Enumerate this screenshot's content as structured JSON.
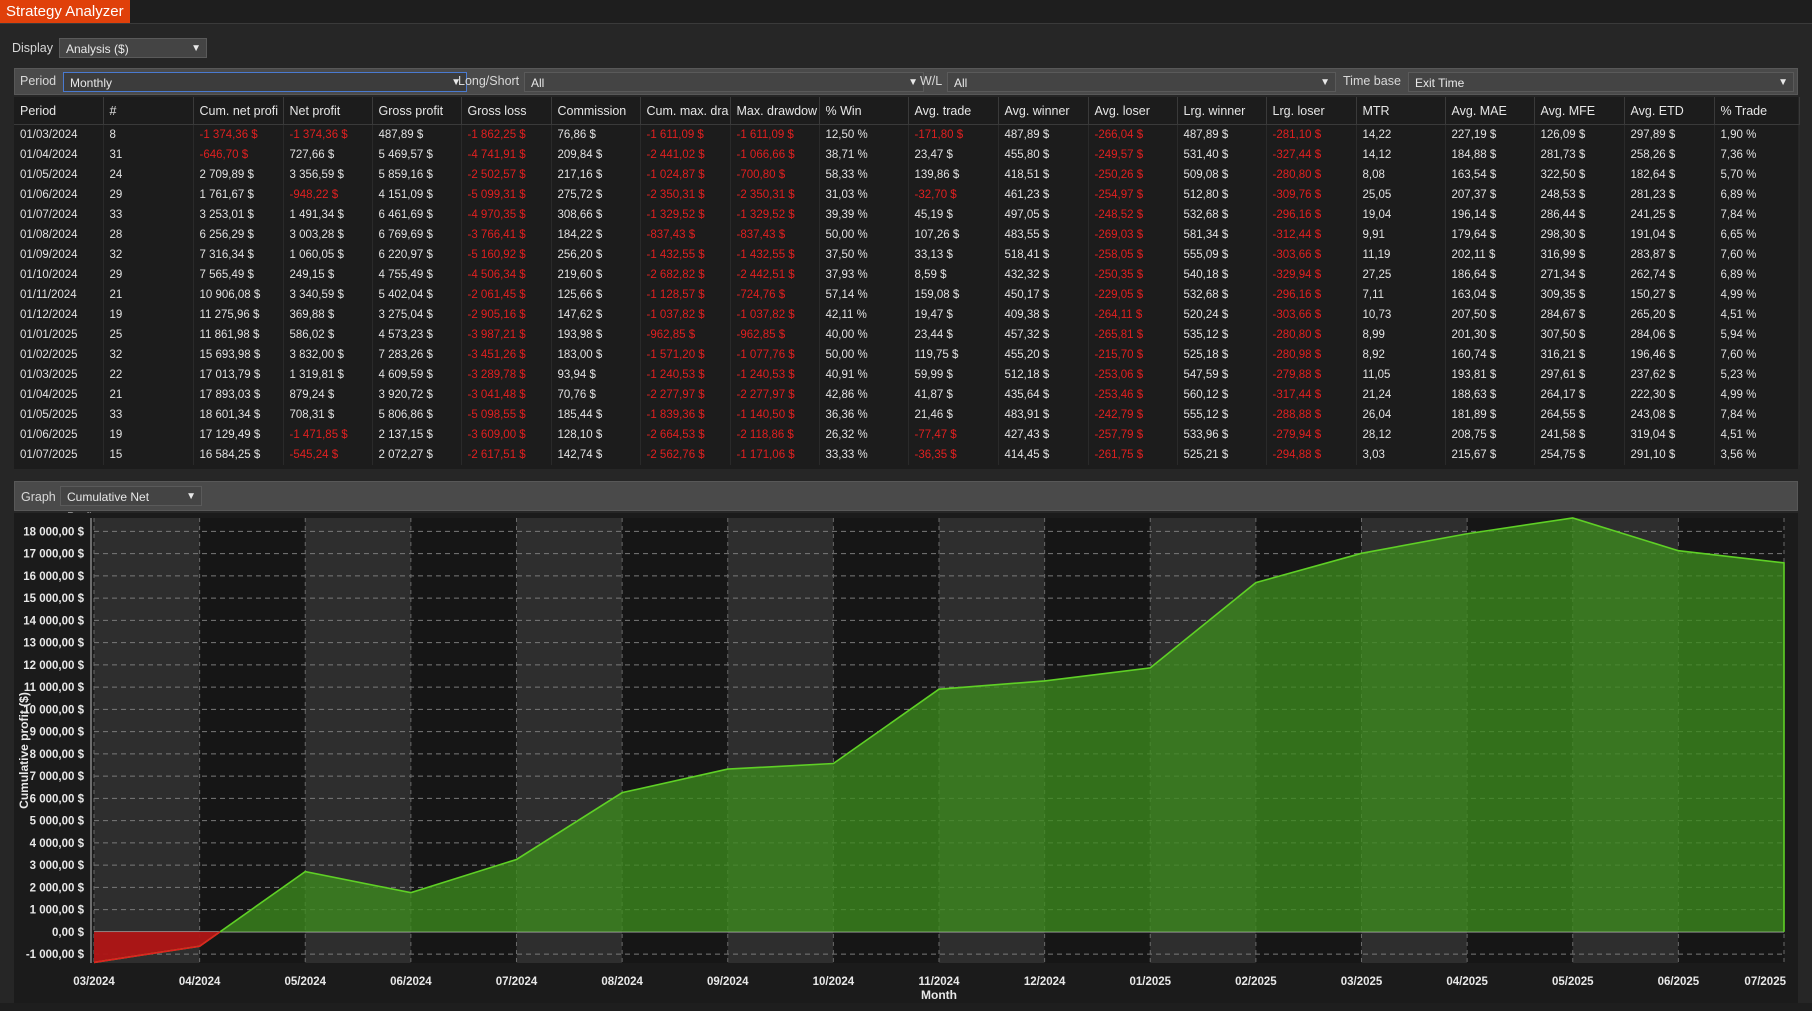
{
  "app": {
    "title": "Strategy Analyzer"
  },
  "display": {
    "label": "Display",
    "value": "Analysis ($)"
  },
  "filters": {
    "period_label": "Period",
    "period_value": "Monthly",
    "longshort_label": "Long/Short",
    "longshort_value": "All",
    "wl_label": "W/L",
    "wl_value": "All",
    "timebase_label": "Time base",
    "timebase_value": "Exit Time"
  },
  "table": {
    "headers": [
      "Period",
      "#",
      "Cum. net profi",
      "Net profit",
      "Gross profit",
      "Gross loss",
      "Commission",
      "Cum. max. dra",
      "Max. drawdow",
      "% Win",
      "Avg. trade",
      "Avg. winner",
      "Avg. loser",
      "Lrg. winner",
      "Lrg. loser",
      "MTR",
      "Avg. MAE",
      "Avg. MFE",
      "Avg. ETD",
      "% Trade"
    ],
    "rows": [
      [
        "01/03/2024",
        "8",
        "-1 374,36 $",
        "-1 374,36 $",
        "487,89 $",
        "-1 862,25 $",
        "76,86 $",
        "-1 611,09 $",
        "-1 611,09 $",
        "12,50 %",
        "-171,80 $",
        "487,89 $",
        "-266,04 $",
        "487,89 $",
        "-281,10 $",
        "14,22",
        "227,19 $",
        "126,09 $",
        "297,89 $",
        "1,90 %"
      ],
      [
        "01/04/2024",
        "31",
        "-646,70 $",
        "727,66 $",
        "5 469,57 $",
        "-4 741,91 $",
        "209,84 $",
        "-2 441,02 $",
        "-1 066,66 $",
        "38,71 %",
        "23,47 $",
        "455,80 $",
        "-249,57 $",
        "531,40 $",
        "-327,44 $",
        "14,12",
        "184,88 $",
        "281,73 $",
        "258,26 $",
        "7,36 %"
      ],
      [
        "01/05/2024",
        "24",
        "2 709,89 $",
        "3 356,59 $",
        "5 859,16 $",
        "-2 502,57 $",
        "217,16 $",
        "-1 024,87 $",
        "-700,80 $",
        "58,33 %",
        "139,86 $",
        "418,51 $",
        "-250,26 $",
        "509,08 $",
        "-280,80 $",
        "8,08",
        "163,54 $",
        "322,50 $",
        "182,64 $",
        "5,70 %"
      ],
      [
        "01/06/2024",
        "29",
        "1 761,67 $",
        "-948,22 $",
        "4 151,09 $",
        "-5 099,31 $",
        "275,72 $",
        "-2 350,31 $",
        "-2 350,31 $",
        "31,03 %",
        "-32,70 $",
        "461,23 $",
        "-254,97 $",
        "512,80 $",
        "-309,76 $",
        "25,05",
        "207,37 $",
        "248,53 $",
        "281,23 $",
        "6,89 %"
      ],
      [
        "01/07/2024",
        "33",
        "3 253,01 $",
        "1 491,34 $",
        "6 461,69 $",
        "-4 970,35 $",
        "308,66 $",
        "-1 329,52 $",
        "-1 329,52 $",
        "39,39 %",
        "45,19 $",
        "497,05 $",
        "-248,52 $",
        "532,68 $",
        "-296,16 $",
        "19,04",
        "196,14 $",
        "286,44 $",
        "241,25 $",
        "7,84 %"
      ],
      [
        "01/08/2024",
        "28",
        "6 256,29 $",
        "3 003,28 $",
        "6 769,69 $",
        "-3 766,41 $",
        "184,22 $",
        "-837,43 $",
        "-837,43 $",
        "50,00 %",
        "107,26 $",
        "483,55 $",
        "-269,03 $",
        "581,34 $",
        "-312,44 $",
        "9,91",
        "179,64 $",
        "298,30 $",
        "191,04 $",
        "6,65 %"
      ],
      [
        "01/09/2024",
        "32",
        "7 316,34 $",
        "1 060,05 $",
        "6 220,97 $",
        "-5 160,92 $",
        "256,20 $",
        "-1 432,55 $",
        "-1 432,55 $",
        "37,50 %",
        "33,13 $",
        "518,41 $",
        "-258,05 $",
        "555,09 $",
        "-303,66 $",
        "11,19",
        "202,11 $",
        "316,99 $",
        "283,87 $",
        "7,60 %"
      ],
      [
        "01/10/2024",
        "29",
        "7 565,49 $",
        "249,15 $",
        "4 755,49 $",
        "-4 506,34 $",
        "219,60 $",
        "-2 682,82 $",
        "-2 442,51 $",
        "37,93 %",
        "8,59 $",
        "432,32 $",
        "-250,35 $",
        "540,18 $",
        "-329,94 $",
        "27,25",
        "186,64 $",
        "271,34 $",
        "262,74 $",
        "6,89 %"
      ],
      [
        "01/11/2024",
        "21",
        "10 906,08 $",
        "3 340,59 $",
        "5 402,04 $",
        "-2 061,45 $",
        "125,66 $",
        "-1 128,57 $",
        "-724,76 $",
        "57,14 %",
        "159,08 $",
        "450,17 $",
        "-229,05 $",
        "532,68 $",
        "-296,16 $",
        "7,11",
        "163,04 $",
        "309,35 $",
        "150,27 $",
        "4,99 %"
      ],
      [
        "01/12/2024",
        "19",
        "11 275,96 $",
        "369,88 $",
        "3 275,04 $",
        "-2 905,16 $",
        "147,62 $",
        "-1 037,82 $",
        "-1 037,82 $",
        "42,11 %",
        "19,47 $",
        "409,38 $",
        "-264,11 $",
        "520,24 $",
        "-303,66 $",
        "10,73",
        "207,50 $",
        "284,67 $",
        "265,20 $",
        "4,51 %"
      ],
      [
        "01/01/2025",
        "25",
        "11 861,98 $",
        "586,02 $",
        "4 573,23 $",
        "-3 987,21 $",
        "193,98 $",
        "-962,85 $",
        "-962,85 $",
        "40,00 %",
        "23,44 $",
        "457,32 $",
        "-265,81 $",
        "535,12 $",
        "-280,80 $",
        "8,99",
        "201,30 $",
        "307,50 $",
        "284,06 $",
        "5,94 %"
      ],
      [
        "01/02/2025",
        "32",
        "15 693,98 $",
        "3 832,00 $",
        "7 283,26 $",
        "-3 451,26 $",
        "183,00 $",
        "-1 571,20 $",
        "-1 077,76 $",
        "50,00 %",
        "119,75 $",
        "455,20 $",
        "-215,70 $",
        "525,18 $",
        "-280,98 $",
        "8,92",
        "160,74 $",
        "316,21 $",
        "196,46 $",
        "7,60 %"
      ],
      [
        "01/03/2025",
        "22",
        "17 013,79 $",
        "1 319,81 $",
        "4 609,59 $",
        "-3 289,78 $",
        "93,94 $",
        "-1 240,53 $",
        "-1 240,53 $",
        "40,91 %",
        "59,99 $",
        "512,18 $",
        "-253,06 $",
        "547,59 $",
        "-279,88 $",
        "11,05",
        "193,81 $",
        "297,61 $",
        "237,62 $",
        "5,23 %"
      ],
      [
        "01/04/2025",
        "21",
        "17 893,03 $",
        "879,24 $",
        "3 920,72 $",
        "-3 041,48 $",
        "70,76 $",
        "-2 277,97 $",
        "-2 277,97 $",
        "42,86 %",
        "41,87 $",
        "435,64 $",
        "-253,46 $",
        "560,12 $",
        "-317,44 $",
        "21,24",
        "188,63 $",
        "264,17 $",
        "222,30 $",
        "4,99 %"
      ],
      [
        "01/05/2025",
        "33",
        "18 601,34 $",
        "708,31 $",
        "5 806,86 $",
        "-5 098,55 $",
        "185,44 $",
        "-1 839,36 $",
        "-1 140,50 $",
        "36,36 %",
        "21,46 $",
        "483,91 $",
        "-242,79 $",
        "555,12 $",
        "-288,88 $",
        "26,04",
        "181,89 $",
        "264,55 $",
        "243,08 $",
        "7,84 %"
      ],
      [
        "01/06/2025",
        "19",
        "17 129,49 $",
        "-1 471,85 $",
        "2 137,15 $",
        "-3 609,00 $",
        "128,10 $",
        "-2 664,53 $",
        "-2 118,86 $",
        "26,32 %",
        "-77,47 $",
        "427,43 $",
        "-257,79 $",
        "533,96 $",
        "-279,94 $",
        "28,12",
        "208,75 $",
        "241,58 $",
        "319,04 $",
        "4,51 %"
      ],
      [
        "01/07/2025",
        "15",
        "16 584,25 $",
        "-545,24 $",
        "2 072,27 $",
        "-2 617,51 $",
        "142,74 $",
        "-2 562,76 $",
        "-1 171,06 $",
        "33,33 %",
        "-36,35 $",
        "414,45 $",
        "-261,75 $",
        "525,21 $",
        "-294,88 $",
        "3,03",
        "215,67 $",
        "254,75 $",
        "291,10 $",
        "3,56 %"
      ]
    ]
  },
  "graph": {
    "label": "Graph",
    "value": "Cumulative Net Profit"
  },
  "chart_data": {
    "type": "area",
    "xlabel": "Month",
    "ylabel": "Cumulative profit ($)",
    "categories": [
      "03/2024",
      "04/2024",
      "05/2024",
      "06/2024",
      "07/2024",
      "08/2024",
      "09/2024",
      "10/2024",
      "11/2024",
      "12/2024",
      "01/2025",
      "02/2025",
      "03/2025",
      "04/2025",
      "05/2025",
      "06/2025",
      "07/2025"
    ],
    "values": [
      -1374.36,
      -646.7,
      2709.89,
      1761.67,
      3253.01,
      6256.29,
      7316.34,
      7565.49,
      10906.08,
      11275.96,
      11861.98,
      15693.98,
      17013.79,
      17893.03,
      18601.34,
      17129.49,
      16584.25
    ],
    "y_ticks": [
      "-1 000,00 $",
      "0,00 $",
      "1 000,00 $",
      "2 000,00 $",
      "3 000,00 $",
      "4 000,00 $",
      "5 000,00 $",
      "6 000,00 $",
      "7 000,00 $",
      "8 000,00 $",
      "9 000,00 $",
      "10 000,00 $",
      "11 000,00 $",
      "12 000,00 $",
      "13 000,00 $",
      "14 000,00 $",
      "15 000,00 $",
      "16 000,00 $",
      "17 000,00 $",
      "18 000,00 $"
    ],
    "ylim": [
      -1400,
      18600
    ],
    "grid": true,
    "colors": {
      "positive_fill": "#3c8a1e",
      "positive_line": "#5fd026",
      "negative_fill": "#b01515",
      "band_a": "#161616",
      "band_b": "#2e2e2e"
    }
  }
}
